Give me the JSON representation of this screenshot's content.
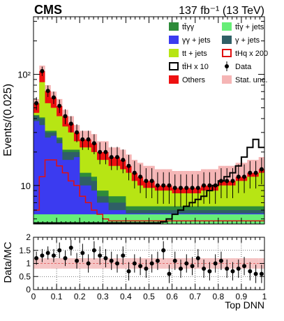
{
  "chart_data": [
    {
      "type": "area",
      "title": "CMS",
      "lumi_text": "137 fb⁻¹ (13 TeV)",
      "xlabel": "Top DNN",
      "ylabel": "Events/(0.025)",
      "x_range": [
        0,
        1
      ],
      "y_range": [
        4.5,
        330
      ],
      "y_scale": "log",
      "y_tick_labels": [
        "10",
        "10²"
      ],
      "grid": false,
      "legend_placement": "top-right",
      "legend": [
        {
          "key": "ttgg",
          "label": "tt̄γγ",
          "color": "#2e8b3a",
          "style": "fill"
        },
        {
          "key": "ttgjets",
          "label": "tt̄γ + jets",
          "color": "#66ee77",
          "style": "fill"
        },
        {
          "key": "ggjets",
          "label": "γγ + jets",
          "color": "#3b3bf0",
          "style": "fill"
        },
        {
          "key": "gjets",
          "label": "γ + jets",
          "color": "#2f5f66",
          "style": "fill"
        },
        {
          "key": "ttjets",
          "label": "tt + jets",
          "color": "#b7e514",
          "style": "fill"
        },
        {
          "key": "thq",
          "label": "tHq x 200",
          "color": "#e01010",
          "style": "line"
        },
        {
          "key": "tth",
          "label": "tt̄H x 10",
          "color": "#000000",
          "style": "line"
        },
        {
          "key": "data",
          "label": "Data",
          "color": "#000000",
          "style": "marker"
        },
        {
          "key": "others",
          "label": "Others",
          "color": "#ee1010",
          "style": "fill"
        },
        {
          "key": "stat",
          "label": "Stat. unc.",
          "color": "#f5b5b5",
          "style": "fill"
        }
      ],
      "stack_order_bottom_to_top": [
        "ttgjets",
        "ggjets",
        "gjets",
        "ttgg",
        "ttjets",
        "others"
      ],
      "bin_width": 0.025,
      "stack_totals": [
        55,
        107,
        71,
        62,
        52,
        42,
        36,
        30,
        26,
        26,
        24,
        20,
        20,
        18,
        18,
        17,
        15,
        13,
        12,
        11,
        11,
        10,
        10,
        10,
        9.5,
        9.5,
        9.5,
        9.5,
        9.5,
        10,
        10,
        10,
        11,
        11,
        11,
        12,
        12,
        13,
        13,
        14
      ],
      "stack_layers": {
        "ttgjets": [
          5.5,
          5.5,
          5.5,
          5.5,
          5.5,
          5.5,
          5.5,
          5.5,
          5.5,
          5.5,
          5.5,
          5.5,
          5.5,
          5.5,
          5.5,
          5.5,
          5.5,
          5.5,
          5.5,
          5.5,
          5.5,
          5.5,
          5.5,
          5.5,
          5.5,
          5.5,
          5.5,
          5.5,
          5.5,
          5.5,
          5.5,
          5.5,
          5.5,
          5.5,
          5.5,
          5.5,
          5.5,
          5.5,
          5.5,
          5.5
        ],
        "ggjets": [
          38,
          35,
          27,
          28,
          24,
          17,
          17,
          18,
          10,
          10,
          9,
          7,
          7,
          6,
          6,
          6,
          5.6,
          5.6,
          5.6,
          5.6,
          5.6,
          5.6,
          5.6,
          5.6,
          5.6,
          5.6,
          5.6,
          5.6,
          5.6,
          5.6,
          5.6,
          5.6,
          5.6,
          5.6,
          5.6,
          5.6,
          5.6,
          5.6,
          5.6,
          5.6
        ],
        "gjets": [
          42,
          40,
          30,
          30,
          26,
          20,
          20,
          20,
          12,
          12,
          11,
          8,
          8,
          7,
          7,
          7,
          6,
          6,
          6,
          6,
          6,
          6,
          6,
          6,
          6,
          6,
          6,
          6,
          6,
          6,
          6,
          6,
          6,
          6,
          6,
          6,
          6,
          6,
          6,
          6
        ],
        "ttgg": [
          43,
          41,
          31,
          31,
          27,
          21,
          21,
          21,
          13,
          13,
          12,
          9,
          9,
          8,
          8,
          8,
          6.5,
          6.5,
          6.5,
          6.5,
          6.5,
          6.5,
          6.5,
          6.5,
          6.5,
          6.5,
          6.5,
          6.5,
          6.5,
          6.5,
          6.5,
          6.5,
          6.5,
          6.5,
          6.5,
          6.5,
          6.5,
          6.5,
          6.5,
          6.5
        ],
        "ttjets": [
          45,
          85,
          55,
          50,
          42,
          34,
          30,
          25,
          22,
          22,
          20,
          17,
          17,
          15,
          15,
          14,
          13,
          11,
          10,
          9.5,
          9.5,
          9,
          9,
          9,
          8.5,
          8.5,
          8.5,
          8.5,
          8.5,
          9,
          9,
          9,
          10,
          10,
          10,
          11,
          11,
          12,
          12,
          13
        ],
        "others": [
          55,
          107,
          71,
          62,
          52,
          42,
          36,
          30,
          26,
          26,
          24,
          20,
          20,
          18,
          18,
          17,
          15,
          13,
          12,
          11,
          11,
          10,
          10,
          10,
          9.5,
          9.5,
          9.5,
          9.5,
          9.5,
          10,
          10,
          10,
          11,
          11,
          11,
          12,
          12,
          13,
          13,
          14
        ]
      },
      "stat_unc_upper": [
        60,
        120,
        80,
        70,
        60,
        48,
        42,
        35,
        31,
        31,
        29,
        25,
        25,
        22,
        22,
        21,
        19,
        17,
        16,
        15,
        15,
        14,
        14,
        14,
        13.5,
        13.5,
        13.5,
        13.5,
        13.5,
        14,
        14,
        14,
        15,
        15,
        15,
        16,
        16,
        17,
        17,
        18
      ],
      "data_points": {
        "x": [
          0.0125,
          0.0375,
          0.0625,
          0.0875,
          0.1125,
          0.1375,
          0.1625,
          0.1875,
          0.2125,
          0.2375,
          0.2625,
          0.2875,
          0.3125,
          0.3375,
          0.3625,
          0.3875,
          0.4125,
          0.4375,
          0.4625,
          0.4875,
          0.5125,
          0.5375,
          0.5625,
          0.5875,
          0.6125,
          0.6375,
          0.6625,
          0.6875,
          0.7125,
          0.7375,
          0.7625,
          0.7875,
          0.8125,
          0.8375,
          0.8625,
          0.8875,
          0.9125,
          0.9375,
          0.9625,
          0.9875
        ],
        "y": [
          55,
          107,
          71,
          62,
          52,
          42,
          36,
          30,
          26,
          26,
          24,
          20,
          20,
          18,
          18,
          17,
          15,
          13,
          12,
          11,
          11,
          10,
          10,
          10,
          9.5,
          9.5,
          9.5,
          9.5,
          9.5,
          10,
          10,
          10,
          11,
          11,
          11,
          12,
          12,
          13,
          13,
          14
        ]
      },
      "thq_line": [
        6,
        12,
        17,
        17,
        15,
        13,
        11,
        10,
        8,
        7,
        6,
        5.5,
        5,
        4.8,
        4.8,
        4.8,
        4.8,
        4.8,
        4.8,
        4.8,
        4.8,
        4.8,
        4.8,
        4.8,
        4.8,
        4.8,
        4.8,
        4.8,
        4.8,
        4.8,
        4.8,
        4.8,
        4.8,
        4.8,
        4.8,
        4.8,
        4.8,
        4.8,
        4.8,
        4.8
      ],
      "tth_line": [
        4.6,
        4.6,
        4.6,
        4.6,
        4.6,
        4.6,
        4.6,
        4.6,
        4.6,
        4.6,
        4.6,
        4.6,
        4.6,
        4.6,
        4.6,
        4.6,
        4.6,
        4.6,
        4.6,
        4.6,
        4.6,
        4.6,
        4.7,
        5,
        5.5,
        6,
        6.5,
        7,
        7.5,
        8,
        9,
        10,
        11,
        12,
        13,
        15,
        18,
        22,
        26,
        22
      ]
    },
    {
      "type": "scatter",
      "ylabel": "Data/MC",
      "xlabel": "Top DNN",
      "x_range": [
        0,
        1
      ],
      "y_range": [
        0,
        2
      ],
      "x_ticks": [
        "0",
        "0.1",
        "0.2",
        "0.3",
        "0.4",
        "0.5",
        "0.6",
        "0.7",
        "0.8",
        "0.9",
        "1"
      ],
      "y_ticks": [
        "0",
        "0.5",
        "1",
        "1.5",
        "2"
      ],
      "grid": true,
      "reference_line": 1,
      "x": [
        0.0125,
        0.0375,
        0.0625,
        0.0875,
        0.1125,
        0.1375,
        0.1625,
        0.1875,
        0.2125,
        0.2375,
        0.2625,
        0.2875,
        0.3125,
        0.3375,
        0.3625,
        0.3875,
        0.4125,
        0.4375,
        0.4625,
        0.4875,
        0.5125,
        0.5375,
        0.5625,
        0.5875,
        0.6125,
        0.6375,
        0.6625,
        0.6875,
        0.7125,
        0.7375,
        0.7625,
        0.7875,
        0.8125,
        0.8375,
        0.8625,
        0.8875,
        0.9125,
        0.9375,
        0.9625,
        0.9875
      ],
      "ratio": [
        1.2,
        1.3,
        1.4,
        1.3,
        1.5,
        1.2,
        1.6,
        1.1,
        1.4,
        1.0,
        1.5,
        1.3,
        1.2,
        1.1,
        1.0,
        1.3,
        0.7,
        1.0,
        0.9,
        0.8,
        1.0,
        1.1,
        1.5,
        0.6,
        1.1,
        0.8,
        1.0,
        0.9,
        1.2,
        0.8,
        0.7,
        1.0,
        1.1,
        0.8,
        0.7,
        0.8,
        0.9,
        0.7,
        0.6,
        0.6
      ],
      "ratio_err": [
        0.25,
        0.25,
        0.25,
        0.25,
        0.3,
        0.3,
        0.3,
        0.3,
        0.35,
        0.35,
        0.35,
        0.35,
        0.35,
        0.35,
        0.35,
        0.35,
        0.35,
        0.35,
        0.35,
        0.35,
        0.35,
        0.35,
        0.35,
        0.35,
        0.35,
        0.35,
        0.35,
        0.35,
        0.35,
        0.35,
        0.35,
        0.35,
        0.35,
        0.35,
        0.35,
        0.35,
        0.35,
        0.35,
        0.35,
        0.35
      ],
      "stat_unc_band": [
        0.2,
        0.2,
        0.2,
        0.2,
        0.2,
        0.2,
        0.2,
        0.2,
        0.2,
        0.2,
        0.2,
        0.2,
        0.2,
        0.2,
        0.2,
        0.2,
        0.2,
        0.2,
        0.2,
        0.2,
        0.2,
        0.2,
        0.2,
        0.2,
        0.2,
        0.2,
        0.2,
        0.2,
        0.2,
        0.2,
        0.2,
        0.2,
        0.2,
        0.2,
        0.2,
        0.2,
        0.2,
        0.2,
        0.2,
        0.2
      ]
    }
  ]
}
